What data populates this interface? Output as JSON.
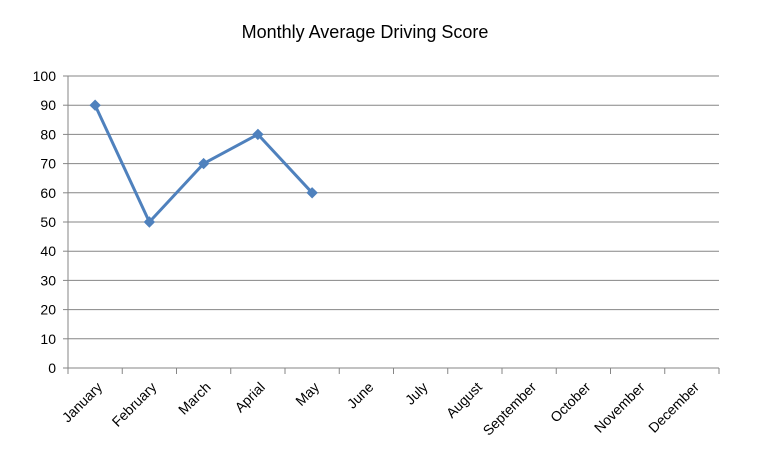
{
  "chart_data": {
    "type": "line",
    "title": "Monthly Average Driving Score",
    "xlabel": "",
    "ylabel": "",
    "ylim": [
      0,
      100
    ],
    "yticks": [
      "0",
      "10",
      "20",
      "30",
      "40",
      "50",
      "60",
      "70",
      "80",
      "90",
      "100"
    ],
    "categories": [
      "January",
      "February",
      "March",
      "Aprial",
      "May",
      "June",
      "July",
      "August",
      "September",
      "October",
      "November",
      "December"
    ],
    "series": [
      {
        "values": [
          90,
          50,
          70,
          80,
          60,
          null,
          null,
          null,
          null,
          null,
          null,
          null
        ]
      }
    ],
    "grid": true,
    "legend": "none",
    "colors": {
      "line": "#4f81bd",
      "grid": "#868686",
      "axis": "#868686"
    }
  }
}
